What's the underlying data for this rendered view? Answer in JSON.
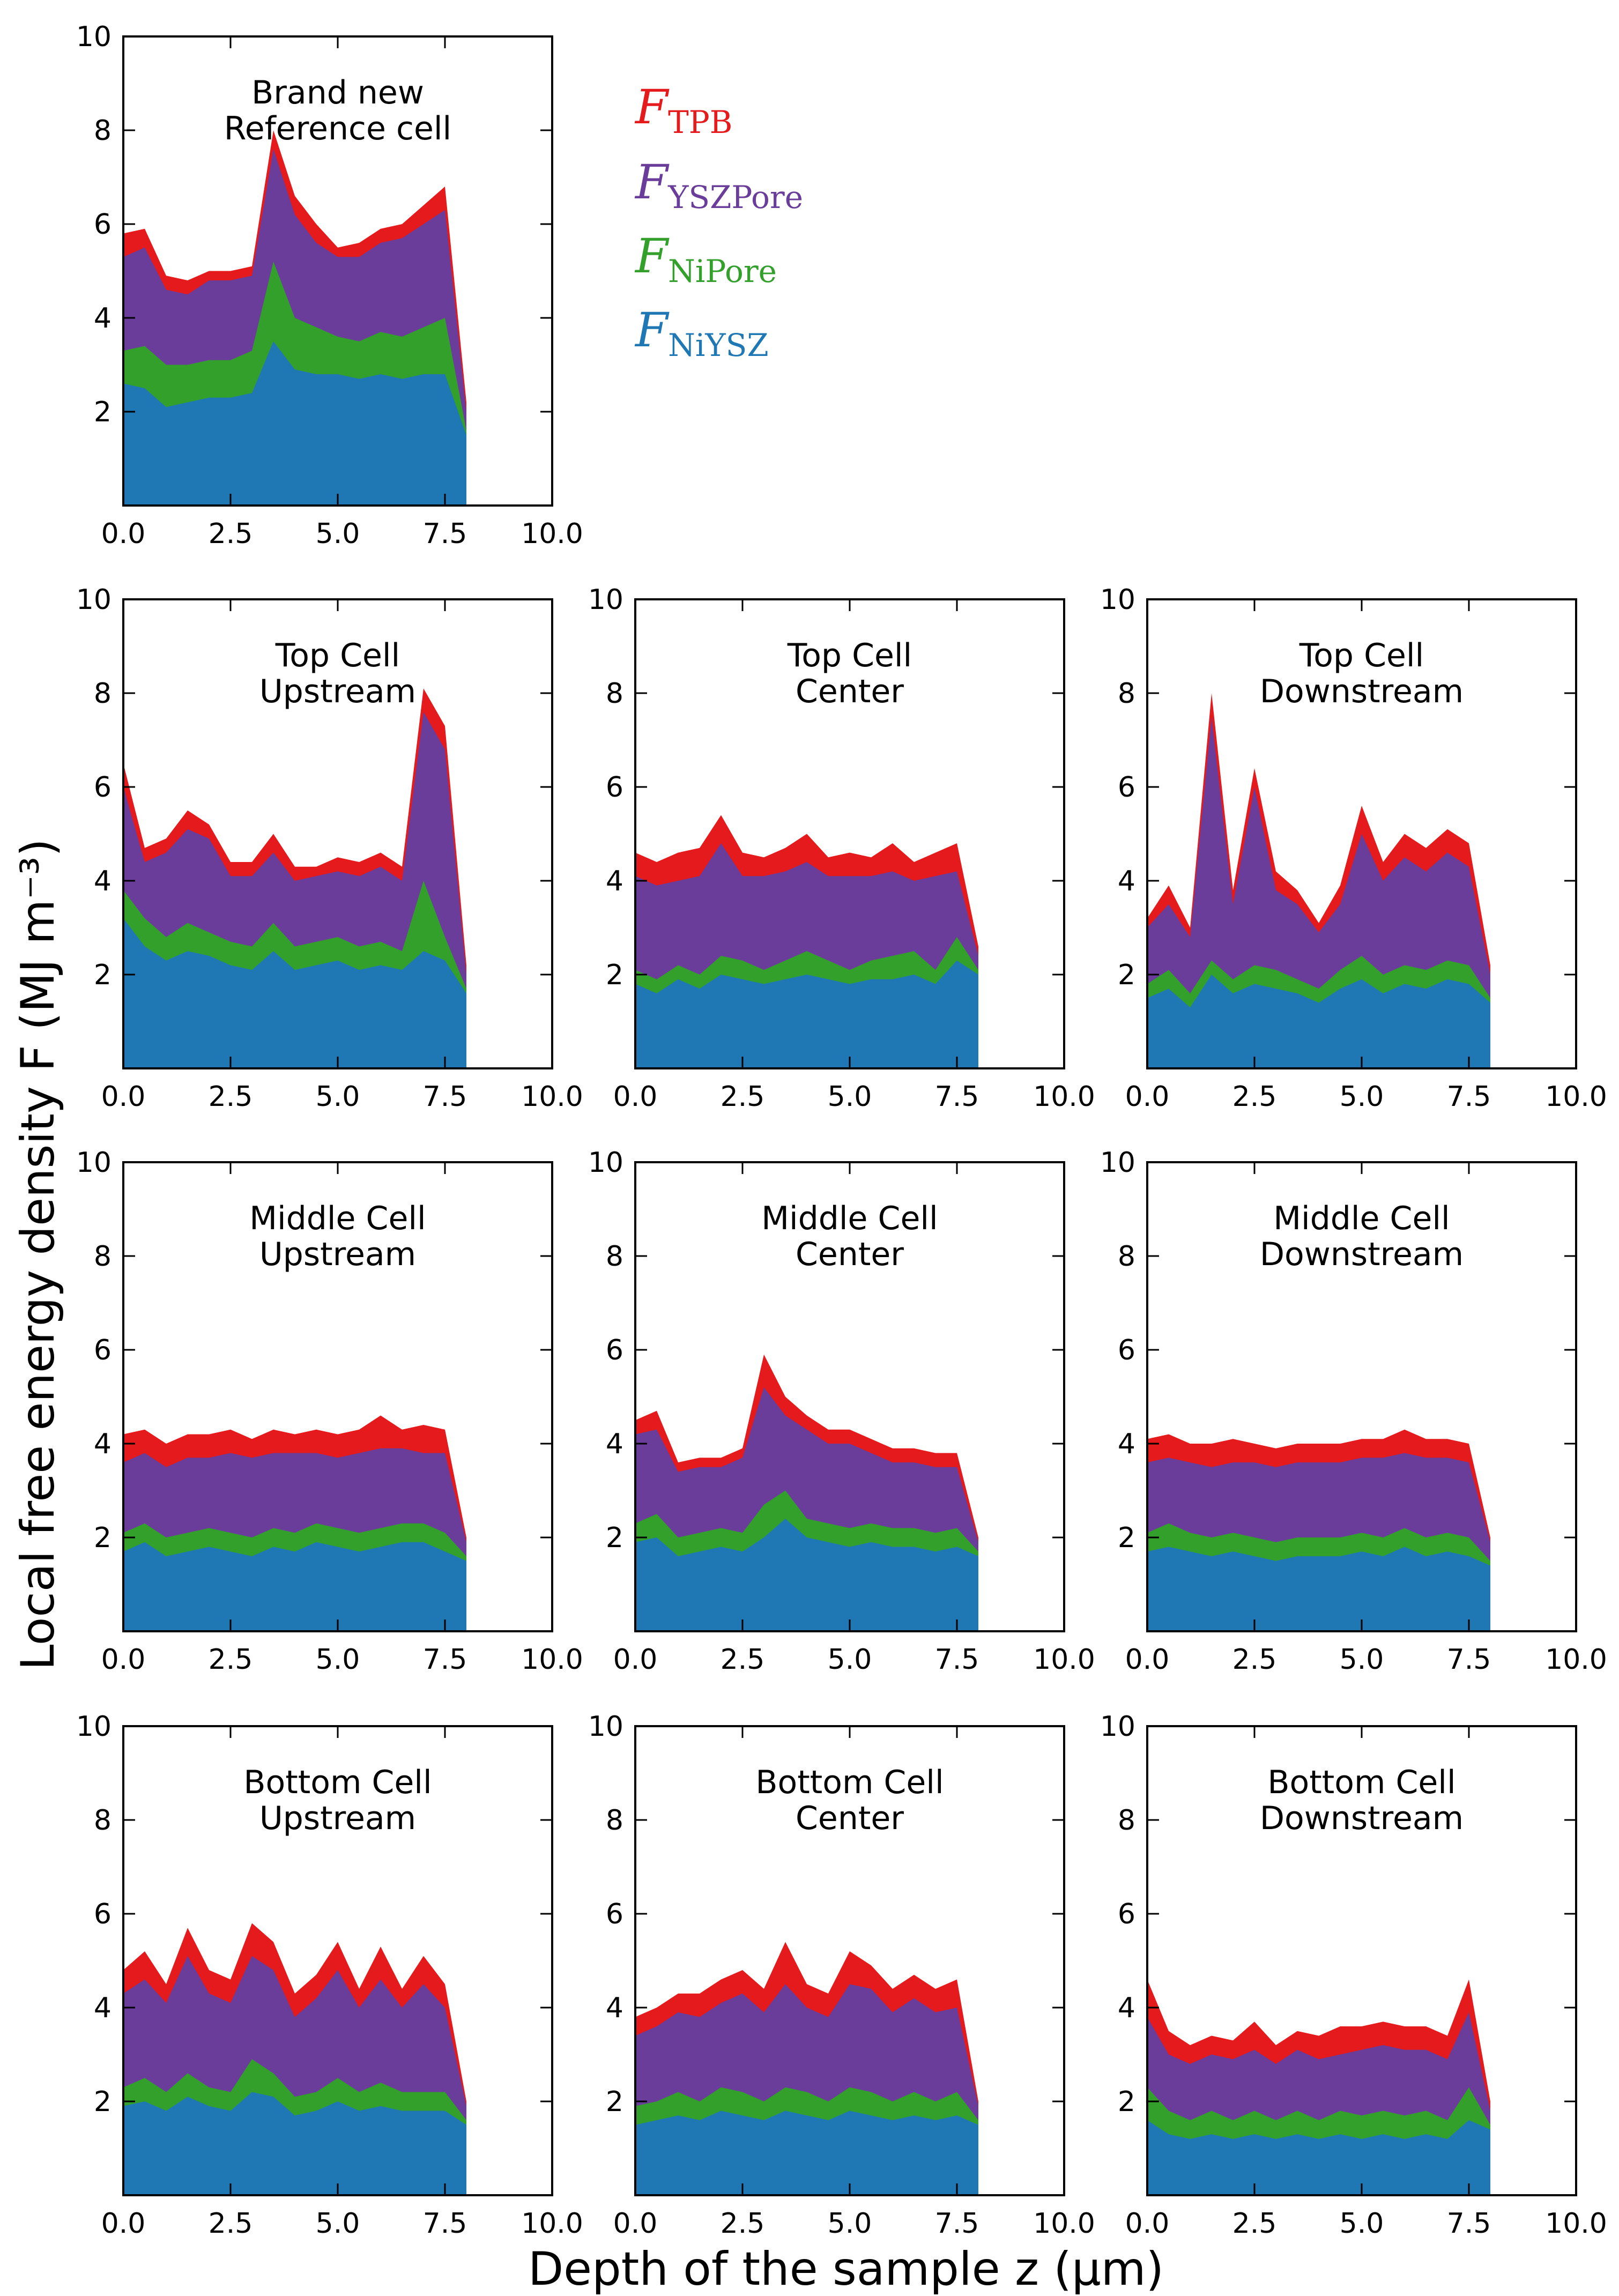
{
  "chart_data": {
    "type": "area",
    "stacked": true,
    "xlabel": "Depth of the sample z (µm)",
    "ylabel": "Local free energy density F (MJ m⁻³)",
    "xlim": [
      0,
      10
    ],
    "ylim": [
      0,
      10
    ],
    "xticks": [
      "0.0",
      "2.5",
      "5.0",
      "7.5",
      "10.0"
    ],
    "yticks": [
      "2",
      "4",
      "6",
      "8",
      "10"
    ],
    "grid": false,
    "legend": {
      "placement": "right of top-left panel",
      "entries": [
        {
          "main": "F",
          "sub": "TPB",
          "color": "#e41a1c"
        },
        {
          "main": "F",
          "sub": "YSZPore",
          "color": "#6a3d9a"
        },
        {
          "main": "F",
          "sub": "NiPore",
          "color": "#33a02c"
        },
        {
          "main": "F",
          "sub": "NiYSZ",
          "color": "#1f78b4"
        }
      ]
    },
    "series_order_bottom_to_top": [
      "NiYSZ",
      "NiPore",
      "YSZPore",
      "TPB"
    ],
    "colors": {
      "NiYSZ": "#1f78b4",
      "NiPore": "#33a02c",
      "YSZPore": "#6a3d9a",
      "TPB": "#e41a1c"
    },
    "x": [
      0.0,
      0.5,
      1.0,
      1.5,
      2.0,
      2.5,
      3.0,
      3.5,
      4.0,
      4.5,
      5.0,
      5.5,
      6.0,
      6.5,
      7.0,
      7.5,
      8.0
    ],
    "panels": [
      {
        "title_line1": "Brand new",
        "title_line2": "Reference cell",
        "cumulative": {
          "NiYSZ": [
            2.6,
            2.5,
            2.1,
            2.2,
            2.3,
            2.3,
            2.4,
            3.5,
            2.9,
            2.8,
            2.8,
            2.7,
            2.8,
            2.7,
            2.8,
            2.8,
            1.5
          ],
          "NiPore": [
            3.3,
            3.4,
            3.0,
            3.0,
            3.1,
            3.1,
            3.3,
            5.2,
            4.0,
            3.8,
            3.6,
            3.5,
            3.7,
            3.6,
            3.8,
            4.0,
            1.6
          ],
          "YSZPore": [
            5.3,
            5.5,
            4.6,
            4.5,
            4.8,
            4.8,
            4.9,
            7.6,
            6.2,
            5.6,
            5.3,
            5.3,
            5.6,
            5.7,
            6.0,
            6.3,
            2.0
          ],
          "TPB": [
            5.8,
            5.9,
            4.9,
            4.8,
            5.0,
            5.0,
            5.1,
            8.0,
            6.6,
            6.0,
            5.5,
            5.6,
            5.9,
            6.0,
            6.4,
            6.8,
            2.2
          ]
        }
      },
      {
        "title_line1": "Top Cell",
        "title_line2": "Upstream",
        "cumulative": {
          "NiYSZ": [
            3.2,
            2.6,
            2.3,
            2.5,
            2.4,
            2.2,
            2.1,
            2.5,
            2.1,
            2.2,
            2.3,
            2.1,
            2.2,
            2.1,
            2.5,
            2.3,
            1.6
          ],
          "NiPore": [
            3.8,
            3.2,
            2.8,
            3.1,
            2.9,
            2.7,
            2.6,
            3.1,
            2.6,
            2.7,
            2.8,
            2.6,
            2.7,
            2.5,
            4.0,
            2.8,
            1.7
          ],
          "YSZPore": [
            6.0,
            4.4,
            4.6,
            5.1,
            4.9,
            4.1,
            4.1,
            4.6,
            4.0,
            4.1,
            4.2,
            4.1,
            4.3,
            4.0,
            7.6,
            6.8,
            2.0
          ],
          "TPB": [
            6.5,
            4.7,
            4.9,
            5.5,
            5.2,
            4.4,
            4.4,
            5.0,
            4.3,
            4.3,
            4.5,
            4.4,
            4.6,
            4.3,
            8.1,
            7.3,
            2.2
          ]
        }
      },
      {
        "title_line1": "Top Cell",
        "title_line2": "Center",
        "cumulative": {
          "NiYSZ": [
            1.8,
            1.6,
            1.9,
            1.7,
            2.0,
            1.9,
            1.8,
            1.9,
            2.0,
            1.9,
            1.8,
            1.9,
            1.9,
            2.0,
            1.8,
            2.3,
            2.0
          ],
          "NiPore": [
            2.1,
            1.9,
            2.2,
            2.0,
            2.4,
            2.3,
            2.1,
            2.3,
            2.5,
            2.3,
            2.1,
            2.3,
            2.4,
            2.5,
            2.1,
            2.8,
            2.1
          ],
          "YSZPore": [
            4.1,
            3.9,
            4.0,
            4.1,
            4.8,
            4.1,
            4.1,
            4.2,
            4.4,
            4.1,
            4.1,
            4.1,
            4.2,
            4.0,
            4.1,
            4.2,
            2.4
          ],
          "TPB": [
            4.6,
            4.4,
            4.6,
            4.7,
            5.4,
            4.6,
            4.5,
            4.7,
            5.0,
            4.5,
            4.6,
            4.5,
            4.8,
            4.4,
            4.6,
            4.8,
            2.6
          ]
        }
      },
      {
        "title_line1": "Top Cell",
        "title_line2": "Downstream",
        "cumulative": {
          "NiYSZ": [
            1.5,
            1.7,
            1.3,
            2.0,
            1.6,
            1.8,
            1.7,
            1.6,
            1.4,
            1.7,
            1.9,
            1.6,
            1.8,
            1.7,
            1.9,
            1.8,
            1.4
          ],
          "NiPore": [
            1.8,
            2.1,
            1.6,
            2.3,
            1.9,
            2.2,
            2.1,
            1.9,
            1.7,
            2.1,
            2.4,
            2.0,
            2.2,
            2.1,
            2.3,
            2.2,
            1.5
          ],
          "YSZPore": [
            3.0,
            3.5,
            2.8,
            7.5,
            3.5,
            6.0,
            3.8,
            3.5,
            2.9,
            3.5,
            5.0,
            4.0,
            4.5,
            4.2,
            4.6,
            4.3,
            2.0
          ],
          "TPB": [
            3.2,
            3.9,
            3.0,
            8.0,
            3.8,
            6.4,
            4.2,
            3.8,
            3.1,
            3.9,
            5.6,
            4.4,
            5.0,
            4.7,
            5.1,
            4.8,
            2.2
          ]
        }
      },
      {
        "title_line1": "Middle Cell",
        "title_line2": "Upstream",
        "cumulative": {
          "NiYSZ": [
            1.7,
            1.9,
            1.6,
            1.7,
            1.8,
            1.7,
            1.6,
            1.8,
            1.7,
            1.9,
            1.8,
            1.7,
            1.8,
            1.9,
            1.9,
            1.7,
            1.5
          ],
          "NiPore": [
            2.1,
            2.3,
            2.0,
            2.1,
            2.2,
            2.1,
            2.0,
            2.2,
            2.1,
            2.3,
            2.2,
            2.1,
            2.2,
            2.3,
            2.3,
            2.1,
            1.6
          ],
          "YSZPore": [
            3.6,
            3.8,
            3.5,
            3.7,
            3.7,
            3.8,
            3.7,
            3.8,
            3.8,
            3.8,
            3.7,
            3.8,
            3.9,
            3.9,
            3.8,
            3.8,
            1.9
          ],
          "TPB": [
            4.2,
            4.3,
            4.0,
            4.2,
            4.2,
            4.3,
            4.1,
            4.3,
            4.2,
            4.3,
            4.2,
            4.3,
            4.6,
            4.3,
            4.4,
            4.3,
            2.0
          ]
        }
      },
      {
        "title_line1": "Middle Cell",
        "title_line2": "Center",
        "cumulative": {
          "NiYSZ": [
            1.9,
            2.0,
            1.6,
            1.7,
            1.8,
            1.7,
            2.0,
            2.4,
            2.0,
            1.9,
            1.8,
            1.9,
            1.8,
            1.8,
            1.7,
            1.8,
            1.6
          ],
          "NiPore": [
            2.3,
            2.5,
            2.0,
            2.1,
            2.2,
            2.1,
            2.7,
            3.0,
            2.4,
            2.3,
            2.2,
            2.3,
            2.2,
            2.2,
            2.1,
            2.2,
            1.7
          ],
          "YSZPore": [
            4.2,
            4.3,
            3.4,
            3.5,
            3.5,
            3.7,
            5.2,
            4.6,
            4.3,
            4.0,
            4.0,
            3.8,
            3.6,
            3.6,
            3.5,
            3.5,
            1.9
          ],
          "TPB": [
            4.5,
            4.7,
            3.6,
            3.7,
            3.7,
            3.9,
            5.9,
            5.0,
            4.6,
            4.3,
            4.3,
            4.1,
            3.9,
            3.9,
            3.8,
            3.8,
            2.0
          ]
        }
      },
      {
        "title_line1": "Middle Cell",
        "title_line2": "Downstream",
        "cumulative": {
          "NiYSZ": [
            1.7,
            1.8,
            1.7,
            1.6,
            1.7,
            1.6,
            1.5,
            1.6,
            1.6,
            1.6,
            1.7,
            1.6,
            1.8,
            1.6,
            1.7,
            1.6,
            1.4
          ],
          "NiPore": [
            2.1,
            2.3,
            2.1,
            2.0,
            2.1,
            2.0,
            1.9,
            2.0,
            2.0,
            2.0,
            2.1,
            2.0,
            2.2,
            2.0,
            2.1,
            2.0,
            1.5
          ],
          "YSZPore": [
            3.6,
            3.7,
            3.6,
            3.5,
            3.6,
            3.6,
            3.5,
            3.6,
            3.6,
            3.6,
            3.7,
            3.7,
            3.8,
            3.7,
            3.7,
            3.6,
            1.9
          ],
          "TPB": [
            4.1,
            4.2,
            4.0,
            4.0,
            4.1,
            4.0,
            3.9,
            4.0,
            4.0,
            4.0,
            4.1,
            4.1,
            4.3,
            4.1,
            4.1,
            4.0,
            2.0
          ]
        }
      },
      {
        "title_line1": "Bottom Cell",
        "title_line2": "Upstream",
        "cumulative": {
          "NiYSZ": [
            1.9,
            2.0,
            1.8,
            2.1,
            1.9,
            1.8,
            2.2,
            2.1,
            1.7,
            1.8,
            2.0,
            1.8,
            1.9,
            1.8,
            1.8,
            1.8,
            1.5
          ],
          "NiPore": [
            2.3,
            2.5,
            2.2,
            2.6,
            2.3,
            2.2,
            2.9,
            2.6,
            2.1,
            2.2,
            2.5,
            2.2,
            2.4,
            2.2,
            2.2,
            2.2,
            1.6
          ],
          "YSZPore": [
            4.3,
            4.6,
            4.1,
            5.1,
            4.3,
            4.1,
            5.1,
            4.8,
            3.8,
            4.2,
            4.8,
            4.0,
            4.6,
            4.0,
            4.5,
            4.0,
            1.9
          ],
          "TPB": [
            4.8,
            5.2,
            4.5,
            5.7,
            4.8,
            4.6,
            5.8,
            5.4,
            4.3,
            4.7,
            5.4,
            4.4,
            5.3,
            4.4,
            5.1,
            4.5,
            2.0
          ]
        }
      },
      {
        "title_line1": "Bottom Cell",
        "title_line2": "Center",
        "cumulative": {
          "NiYSZ": [
            1.5,
            1.6,
            1.7,
            1.6,
            1.8,
            1.7,
            1.6,
            1.8,
            1.7,
            1.6,
            1.8,
            1.7,
            1.6,
            1.7,
            1.6,
            1.7,
            1.5
          ],
          "NiPore": [
            1.9,
            2.0,
            2.2,
            2.0,
            2.3,
            2.2,
            2.0,
            2.3,
            2.2,
            2.0,
            2.3,
            2.2,
            2.0,
            2.2,
            2.0,
            2.2,
            1.6
          ],
          "YSZPore": [
            3.4,
            3.6,
            3.9,
            3.8,
            4.1,
            4.3,
            3.9,
            4.5,
            4.0,
            3.8,
            4.5,
            4.4,
            3.9,
            4.2,
            3.9,
            4.0,
            1.9
          ],
          "TPB": [
            3.8,
            4.0,
            4.3,
            4.3,
            4.6,
            4.8,
            4.4,
            5.4,
            4.5,
            4.3,
            5.2,
            4.9,
            4.4,
            4.7,
            4.4,
            4.6,
            2.0
          ]
        }
      },
      {
        "title_line1": "Bottom Cell",
        "title_line2": "Downstream",
        "cumulative": {
          "NiYSZ": [
            1.6,
            1.3,
            1.2,
            1.3,
            1.2,
            1.3,
            1.2,
            1.3,
            1.2,
            1.3,
            1.2,
            1.3,
            1.2,
            1.3,
            1.2,
            1.6,
            1.4
          ],
          "NiPore": [
            2.3,
            1.8,
            1.6,
            1.8,
            1.6,
            1.8,
            1.6,
            1.8,
            1.6,
            1.8,
            1.7,
            1.8,
            1.7,
            1.8,
            1.6,
            2.3,
            1.5
          ],
          "YSZPore": [
            3.8,
            3.0,
            2.8,
            3.0,
            2.9,
            3.1,
            2.8,
            3.1,
            2.9,
            3.0,
            3.1,
            3.2,
            3.1,
            3.1,
            2.9,
            3.9,
            1.8
          ],
          "TPB": [
            4.6,
            3.5,
            3.2,
            3.4,
            3.3,
            3.7,
            3.2,
            3.5,
            3.4,
            3.6,
            3.6,
            3.7,
            3.6,
            3.6,
            3.4,
            4.6,
            2.0
          ]
        }
      }
    ]
  }
}
